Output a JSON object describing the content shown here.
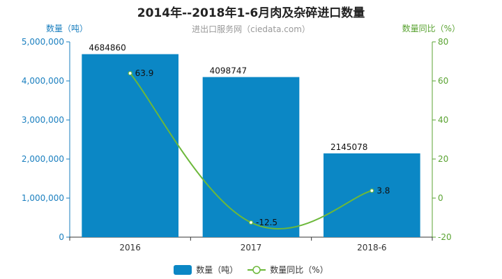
{
  "chart_data": {
    "type": "bar",
    "title": "2014年--2018年1-6月肉及杂碎进口数量",
    "subtitle": "进出口服务网（ciedata.com）",
    "categories": [
      "2016",
      "2017",
      "2018-6"
    ],
    "y_left": {
      "label": "数量（吨）",
      "ylim": [
        0,
        5000000
      ],
      "ticks": [
        "0",
        "1,000,000",
        "2,000,000",
        "3,000,000",
        "4,000,000",
        "5,000,000"
      ]
    },
    "y_right": {
      "label": "数量同比（%）",
      "ylim": [
        -20,
        80
      ],
      "ticks": [
        "-20",
        "0",
        "20",
        "40",
        "60",
        "80"
      ]
    },
    "series": [
      {
        "name": "数量（吨）",
        "type": "bar",
        "axis": "left",
        "values": [
          4684860,
          4098747,
          2145078
        ],
        "labels": [
          "4684860",
          "4098747",
          "2145078"
        ]
      },
      {
        "name": "数量同比（%）",
        "type": "line",
        "axis": "right",
        "values": [
          63.9,
          -12.5,
          3.8
        ],
        "labels": [
          "63.9",
          "-12.5",
          "3.8"
        ]
      }
    ],
    "grid": false,
    "legend": "bottom-center",
    "colors": {
      "bar": "#0b87c5",
      "line": "#6cb83a",
      "left_axis": "#1a7fbf",
      "right_axis": "#5aa332"
    }
  }
}
